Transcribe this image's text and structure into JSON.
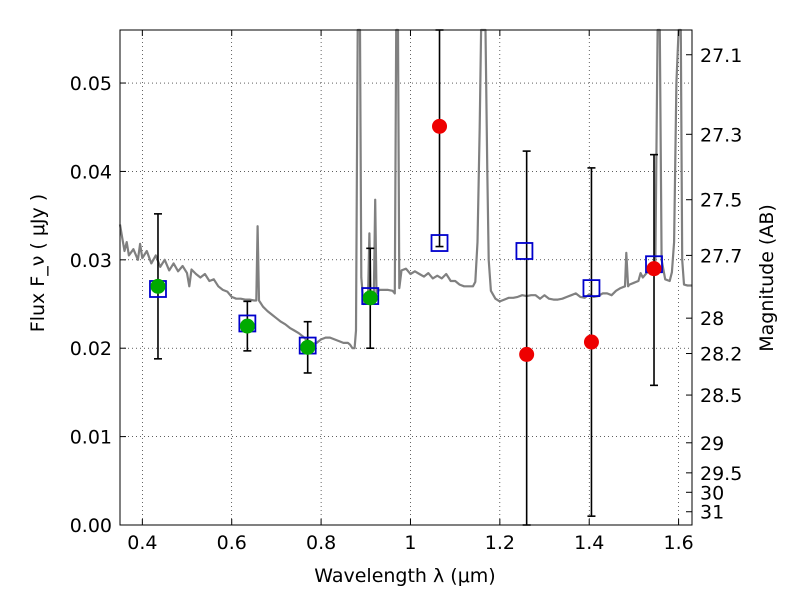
{
  "chart_data": {
    "type": "scatter",
    "xlabel": "Wavelength  λ (μm)",
    "ylabel_left": "Flux  F_ν  ( μJy )",
    "ylabel_right": "Magnitude (AB)",
    "xlim": [
      0.35,
      1.63
    ],
    "ylim": [
      0.0,
      0.056
    ],
    "grid": true,
    "grid_style": "dotted",
    "x_ticks": [
      {
        "value": 0.4,
        "label": "0.4"
      },
      {
        "value": 0.6,
        "label": "0.6"
      },
      {
        "value": 0.8,
        "label": "0.8"
      },
      {
        "value": 1.0,
        "label": "1"
      },
      {
        "value": 1.2,
        "label": "1.2"
      },
      {
        "value": 1.4,
        "label": "1.4"
      },
      {
        "value": 1.6,
        "label": "1.6"
      }
    ],
    "y_ticks": [
      {
        "value": 0.0,
        "label": "0.00"
      },
      {
        "value": 0.01,
        "label": "0.01"
      },
      {
        "value": 0.02,
        "label": "0.02"
      },
      {
        "value": 0.03,
        "label": "0.03"
      },
      {
        "value": 0.04,
        "label": "0.04"
      },
      {
        "value": 0.05,
        "label": "0.05"
      }
    ],
    "right_ticks": [
      {
        "flux": 0.0532,
        "label": "27.1"
      },
      {
        "flux": 0.0442,
        "label": "27.3"
      },
      {
        "flux": 0.0368,
        "label": "27.5"
      },
      {
        "flux": 0.0305,
        "label": "27.7"
      },
      {
        "flux": 0.0234,
        "label": "28"
      },
      {
        "flux": 0.0194,
        "label": "28.2"
      },
      {
        "flux": 0.0147,
        "label": "28.5"
      },
      {
        "flux": 0.0093,
        "label": "29"
      },
      {
        "flux": 0.0059,
        "label": "29.5"
      },
      {
        "flux": 0.0037,
        "label": "30"
      },
      {
        "flux": 0.0015,
        "label": "31"
      }
    ],
    "series": [
      {
        "role": "model_photometry",
        "marker": "open-square",
        "color": "#0000cc",
        "points": [
          {
            "x": 0.435,
            "y": 0.0267
          },
          {
            "x": 0.635,
            "y": 0.0228
          },
          {
            "x": 0.77,
            "y": 0.0203
          },
          {
            "x": 0.91,
            "y": 0.0259
          },
          {
            "x": 1.065,
            "y": 0.0319
          },
          {
            "x": 1.255,
            "y": 0.031
          },
          {
            "x": 1.405,
            "y": 0.0268
          },
          {
            "x": 1.545,
            "y": 0.0295
          }
        ]
      },
      {
        "role": "detections",
        "marker": "filled-circle",
        "color": "#00aa00",
        "points": [
          {
            "x": 0.435,
            "y": 0.027,
            "err_low": 0.0188,
            "err_high": 0.0352
          },
          {
            "x": 0.635,
            "y": 0.0225,
            "err_low": 0.0197,
            "err_high": 0.0253
          },
          {
            "x": 0.77,
            "y": 0.0201,
            "err_low": 0.0172,
            "err_high": 0.023
          },
          {
            "x": 0.91,
            "y": 0.0257,
            "err_low": 0.02,
            "err_high": 0.0313
          }
        ]
      },
      {
        "role": "low_sn_measurements",
        "marker": "filled-circle",
        "color": "#ee0000",
        "points": [
          {
            "x": 1.065,
            "y": 0.0451,
            "err_low": 0.0315,
            "err_high": 0.056
          },
          {
            "x": 1.26,
            "y": 0.0193,
            "err_low": 0.0,
            "err_high": 0.0423
          },
          {
            "x": 1.405,
            "y": 0.0207,
            "err_low": 0.001,
            "err_high": 0.0404
          },
          {
            "x": 1.545,
            "y": 0.029,
            "err_low": 0.0158,
            "err_high": 0.0419
          }
        ]
      },
      {
        "role": "model_spectrum",
        "marker": "line",
        "color": "#808080",
        "points": [
          [
            0.35,
            0.034
          ],
          [
            0.355,
            0.0325
          ],
          [
            0.36,
            0.031
          ],
          [
            0.365,
            0.032
          ],
          [
            0.37,
            0.0305
          ],
          [
            0.38,
            0.0312
          ],
          [
            0.39,
            0.03
          ],
          [
            0.395,
            0.0318
          ],
          [
            0.4,
            0.0302
          ],
          [
            0.41,
            0.031
          ],
          [
            0.42,
            0.0296
          ],
          [
            0.43,
            0.0305
          ],
          [
            0.44,
            0.0292
          ],
          [
            0.45,
            0.03
          ],
          [
            0.46,
            0.0288
          ],
          [
            0.47,
            0.0296
          ],
          [
            0.48,
            0.0287
          ],
          [
            0.49,
            0.0293
          ],
          [
            0.5,
            0.0285
          ],
          [
            0.505,
            0.027
          ],
          [
            0.51,
            0.0289
          ],
          [
            0.52,
            0.0284
          ],
          [
            0.53,
            0.028
          ],
          [
            0.54,
            0.0284
          ],
          [
            0.55,
            0.0276
          ],
          [
            0.56,
            0.0278
          ],
          [
            0.57,
            0.027
          ],
          [
            0.58,
            0.0266
          ],
          [
            0.59,
            0.0264
          ],
          [
            0.6,
            0.0258
          ],
          [
            0.61,
            0.0256
          ],
          [
            0.62,
            0.0256
          ],
          [
            0.63,
            0.0255
          ],
          [
            0.64,
            0.0255
          ],
          [
            0.65,
            0.0254
          ],
          [
            0.655,
            0.0254
          ],
          [
            0.658,
            0.0338
          ],
          [
            0.661,
            0.0254
          ],
          [
            0.67,
            0.0247
          ],
          [
            0.68,
            0.0242
          ],
          [
            0.69,
            0.0238
          ],
          [
            0.7,
            0.0234
          ],
          [
            0.71,
            0.023
          ],
          [
            0.72,
            0.0227
          ],
          [
            0.73,
            0.0223
          ],
          [
            0.74,
            0.022
          ],
          [
            0.75,
            0.0217
          ],
          [
            0.76,
            0.0213
          ],
          [
            0.77,
            0.0208
          ],
          [
            0.78,
            0.0205
          ],
          [
            0.79,
            0.0206
          ],
          [
            0.8,
            0.021
          ],
          [
            0.81,
            0.0212
          ],
          [
            0.82,
            0.0212
          ],
          [
            0.83,
            0.021
          ],
          [
            0.84,
            0.0208
          ],
          [
            0.85,
            0.0206
          ],
          [
            0.86,
            0.0206
          ],
          [
            0.865,
            0.0204
          ],
          [
            0.87,
            0.02
          ],
          [
            0.875,
            0.02
          ],
          [
            0.878,
            0.022
          ],
          [
            0.882,
            0.056
          ],
          [
            0.887,
            0.056
          ],
          [
            0.89,
            0.028
          ],
          [
            0.895,
            0.025
          ],
          [
            0.9,
            0.0254
          ],
          [
            0.905,
            0.0256
          ],
          [
            0.908,
            0.033
          ],
          [
            0.911,
            0.0259
          ],
          [
            0.918,
            0.0258
          ],
          [
            0.921,
            0.0368
          ],
          [
            0.924,
            0.0262
          ],
          [
            0.93,
            0.0266
          ],
          [
            0.94,
            0.0266
          ],
          [
            0.95,
            0.0266
          ],
          [
            0.96,
            0.0265
          ],
          [
            0.965,
            0.0262
          ],
          [
            0.968,
            0.056
          ],
          [
            0.972,
            0.056
          ],
          [
            0.975,
            0.0268
          ],
          [
            0.98,
            0.0288
          ],
          [
            0.99,
            0.029
          ],
          [
            1.0,
            0.0284
          ],
          [
            1.01,
            0.0287
          ],
          [
            1.02,
            0.0284
          ],
          [
            1.03,
            0.0281
          ],
          [
            1.04,
            0.0285
          ],
          [
            1.05,
            0.0279
          ],
          [
            1.06,
            0.0282
          ],
          [
            1.07,
            0.0279
          ],
          [
            1.08,
            0.0284
          ],
          [
            1.085,
            0.028
          ],
          [
            1.09,
            0.0276
          ],
          [
            1.1,
            0.0276
          ],
          [
            1.11,
            0.0272
          ],
          [
            1.12,
            0.027
          ],
          [
            1.13,
            0.027
          ],
          [
            1.14,
            0.027
          ],
          [
            1.145,
            0.0275
          ],
          [
            1.15,
            0.032
          ],
          [
            1.155,
            0.045
          ],
          [
            1.158,
            0.056
          ],
          [
            1.168,
            0.056
          ],
          [
            1.172,
            0.04
          ],
          [
            1.175,
            0.03
          ],
          [
            1.18,
            0.0265
          ],
          [
            1.19,
            0.0256
          ],
          [
            1.2,
            0.0253
          ],
          [
            1.21,
            0.0255
          ],
          [
            1.22,
            0.0257
          ],
          [
            1.23,
            0.0257
          ],
          [
            1.24,
            0.0258
          ],
          [
            1.25,
            0.026
          ],
          [
            1.26,
            0.0259
          ],
          [
            1.27,
            0.026
          ],
          [
            1.28,
            0.026
          ],
          [
            1.29,
            0.0256
          ],
          [
            1.3,
            0.026
          ],
          [
            1.31,
            0.0256
          ],
          [
            1.32,
            0.0255
          ],
          [
            1.33,
            0.0255
          ],
          [
            1.34,
            0.0256
          ],
          [
            1.35,
            0.0258
          ],
          [
            1.36,
            0.026
          ],
          [
            1.37,
            0.0262
          ],
          [
            1.38,
            0.0258
          ],
          [
            1.39,
            0.0257
          ],
          [
            1.4,
            0.0261
          ],
          [
            1.41,
            0.0258
          ],
          [
            1.42,
            0.0259
          ],
          [
            1.43,
            0.0262
          ],
          [
            1.44,
            0.0262
          ],
          [
            1.45,
            0.026
          ],
          [
            1.46,
            0.0265
          ],
          [
            1.47,
            0.0268
          ],
          [
            1.48,
            0.027
          ],
          [
            1.483,
            0.0308
          ],
          [
            1.487,
            0.027
          ],
          [
            1.49,
            0.0272
          ],
          [
            1.5,
            0.0274
          ],
          [
            1.51,
            0.0276
          ],
          [
            1.515,
            0.0285
          ],
          [
            1.52,
            0.028
          ],
          [
            1.53,
            0.0286
          ],
          [
            1.54,
            0.0291
          ],
          [
            1.545,
            0.0288
          ],
          [
            1.548,
            0.03
          ],
          [
            1.553,
            0.056
          ],
          [
            1.558,
            0.056
          ],
          [
            1.562,
            0.03
          ],
          [
            1.57,
            0.0278
          ],
          [
            1.58,
            0.0276
          ],
          [
            1.585,
            0.0286
          ],
          [
            1.59,
            0.032
          ],
          [
            1.595,
            0.05
          ],
          [
            1.6,
            0.056
          ],
          [
            1.605,
            0.056
          ],
          [
            1.608,
            0.03
          ],
          [
            1.612,
            0.0272
          ],
          [
            1.62,
            0.0271
          ],
          [
            1.63,
            0.0271
          ]
        ]
      }
    ]
  }
}
